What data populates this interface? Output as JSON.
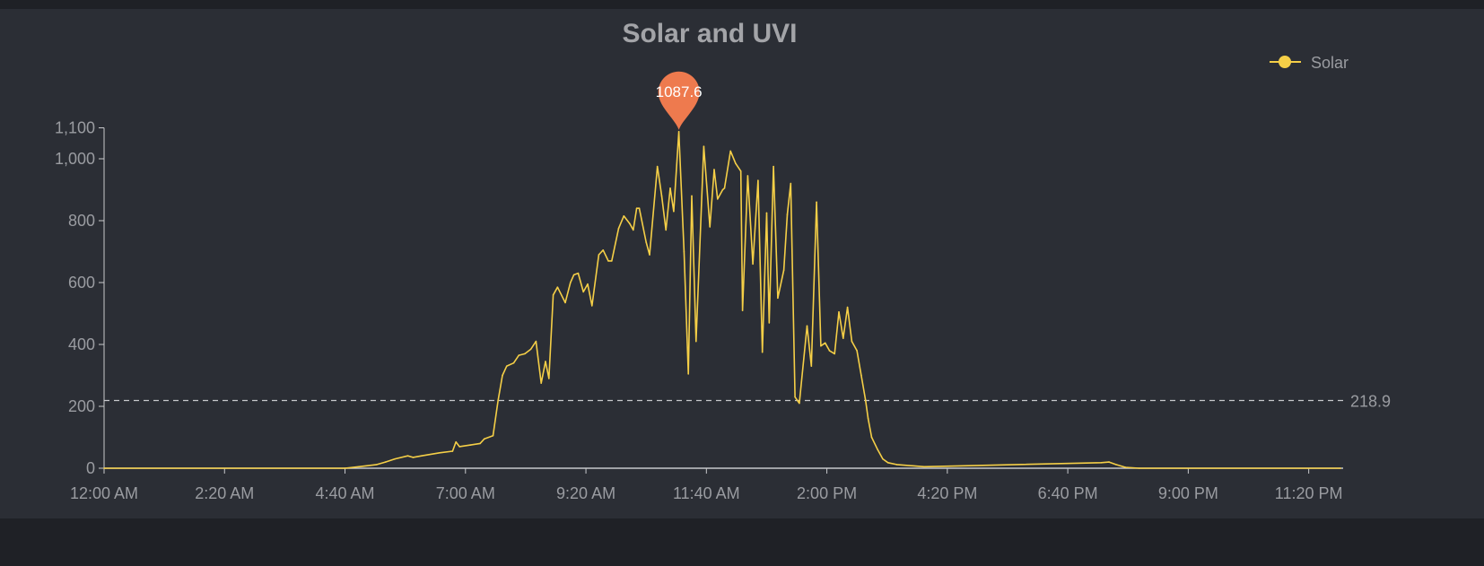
{
  "chart_data": {
    "type": "line",
    "title": "Solar and UVI",
    "xlabel": "",
    "ylabel": "",
    "x_ticks": [
      "12:00 AM",
      "2:20 AM",
      "4:40 AM",
      "7:00 AM",
      "9:20 AM",
      "11:40 AM",
      "2:00 PM",
      "4:20 PM",
      "6:40 PM",
      "9:00 PM",
      "11:20 PM"
    ],
    "y_ticks": [
      "0",
      "200",
      "400",
      "600",
      "800",
      "1,000",
      "1,100"
    ],
    "y_tick_values": [
      0,
      200,
      400,
      600,
      800,
      1000,
      1100
    ],
    "ylim": [
      0,
      1100
    ],
    "xlim": [
      "00:00",
      "24:00"
    ],
    "grid": false,
    "legend": {
      "position": "top-right",
      "entries": [
        "Solar"
      ]
    },
    "series": [
      {
        "name": "Solar",
        "color": "#f5cf47",
        "points": [
          [
            "00:00",
            0
          ],
          [
            "04:40",
            0
          ],
          [
            "04:56",
            5
          ],
          [
            "05:17",
            12
          ],
          [
            "05:27",
            20
          ],
          [
            "05:38",
            30
          ],
          [
            "05:53",
            40
          ],
          [
            "05:59",
            35
          ],
          [
            "06:09",
            40
          ],
          [
            "06:30",
            50
          ],
          [
            "06:45",
            55
          ],
          [
            "06:49",
            85
          ],
          [
            "06:53",
            70
          ],
          [
            "07:06",
            75
          ],
          [
            "07:17",
            80
          ],
          [
            "07:22",
            95
          ],
          [
            "07:32",
            105
          ],
          [
            "07:38",
            220
          ],
          [
            "07:43",
            300
          ],
          [
            "07:48",
            330
          ],
          [
            "07:56",
            340
          ],
          [
            "08:02",
            365
          ],
          [
            "08:09",
            370
          ],
          [
            "08:16",
            385
          ],
          [
            "08:22",
            410
          ],
          [
            "08:28",
            275
          ],
          [
            "08:33",
            345
          ],
          [
            "08:37",
            290
          ],
          [
            "08:42",
            560
          ],
          [
            "08:47",
            585
          ],
          [
            "08:56",
            535
          ],
          [
            "09:02",
            600
          ],
          [
            "09:06",
            625
          ],
          [
            "09:11",
            630
          ],
          [
            "09:17",
            570
          ],
          [
            "09:22",
            595
          ],
          [
            "09:27",
            525
          ],
          [
            "09:35",
            690
          ],
          [
            "09:40",
            705
          ],
          [
            "09:46",
            670
          ],
          [
            "09:50",
            670
          ],
          [
            "09:58",
            775
          ],
          [
            "10:04",
            815
          ],
          [
            "10:11",
            790
          ],
          [
            "10:15",
            770
          ],
          [
            "10:19",
            840
          ],
          [
            "10:22",
            840
          ],
          [
            "10:30",
            730
          ],
          [
            "10:34",
            690
          ],
          [
            "10:43",
            975
          ],
          [
            "10:48",
            880
          ],
          [
            "10:53",
            770
          ],
          [
            "10:58",
            905
          ],
          [
            "11:02",
            830
          ],
          [
            "11:08",
            1087.6
          ],
          [
            "11:14",
            700
          ],
          [
            "11:19",
            305
          ],
          [
            "11:23",
            880
          ],
          [
            "11:28",
            410
          ],
          [
            "11:37",
            1040
          ],
          [
            "11:44",
            780
          ],
          [
            "11:49",
            965
          ],
          [
            "11:53",
            870
          ],
          [
            "11:59",
            900
          ],
          [
            "12:01",
            905
          ],
          [
            "12:08",
            1025
          ],
          [
            "12:14",
            985
          ],
          [
            "12:20",
            960
          ],
          [
            "12:22",
            510
          ],
          [
            "12:28",
            945
          ],
          [
            "12:34",
            660
          ],
          [
            "12:40",
            930
          ],
          [
            "12:45",
            375
          ],
          [
            "12:50",
            825
          ],
          [
            "12:53",
            470
          ],
          [
            "12:58",
            975
          ],
          [
            "13:03",
            550
          ],
          [
            "13:10",
            640
          ],
          [
            "13:14",
            820
          ],
          [
            "13:18",
            920
          ],
          [
            "13:23",
            230
          ],
          [
            "13:28",
            210
          ],
          [
            "13:37",
            460
          ],
          [
            "13:42",
            330
          ],
          [
            "13:48",
            860
          ],
          [
            "13:53",
            395
          ],
          [
            "13:58",
            405
          ],
          [
            "14:03",
            380
          ],
          [
            "14:09",
            370
          ],
          [
            "14:14",
            505
          ],
          [
            "14:19",
            420
          ],
          [
            "14:24",
            520
          ],
          [
            "14:29",
            410
          ],
          [
            "14:35",
            380
          ],
          [
            "14:40",
            300
          ],
          [
            "14:45",
            220
          ],
          [
            "14:48",
            160
          ],
          [
            "14:52",
            100
          ],
          [
            "14:59",
            60
          ],
          [
            "15:05",
            30
          ],
          [
            "15:11",
            18
          ],
          [
            "15:21",
            12
          ],
          [
            "15:53",
            5
          ],
          [
            "19:19",
            18
          ],
          [
            "19:28",
            20
          ],
          [
            "19:36",
            12
          ],
          [
            "19:47",
            3
          ],
          [
            "20:03",
            0
          ],
          [
            "23:57",
            0
          ]
        ]
      }
    ],
    "annotations": {
      "max_marker": {
        "label": "1087.6",
        "time": "11:08",
        "value": 1087.6,
        "color": "#ee7a4e"
      },
      "average_line": {
        "label": "218.9",
        "value": 218.9,
        "color": "#c8c9cc"
      }
    }
  }
}
